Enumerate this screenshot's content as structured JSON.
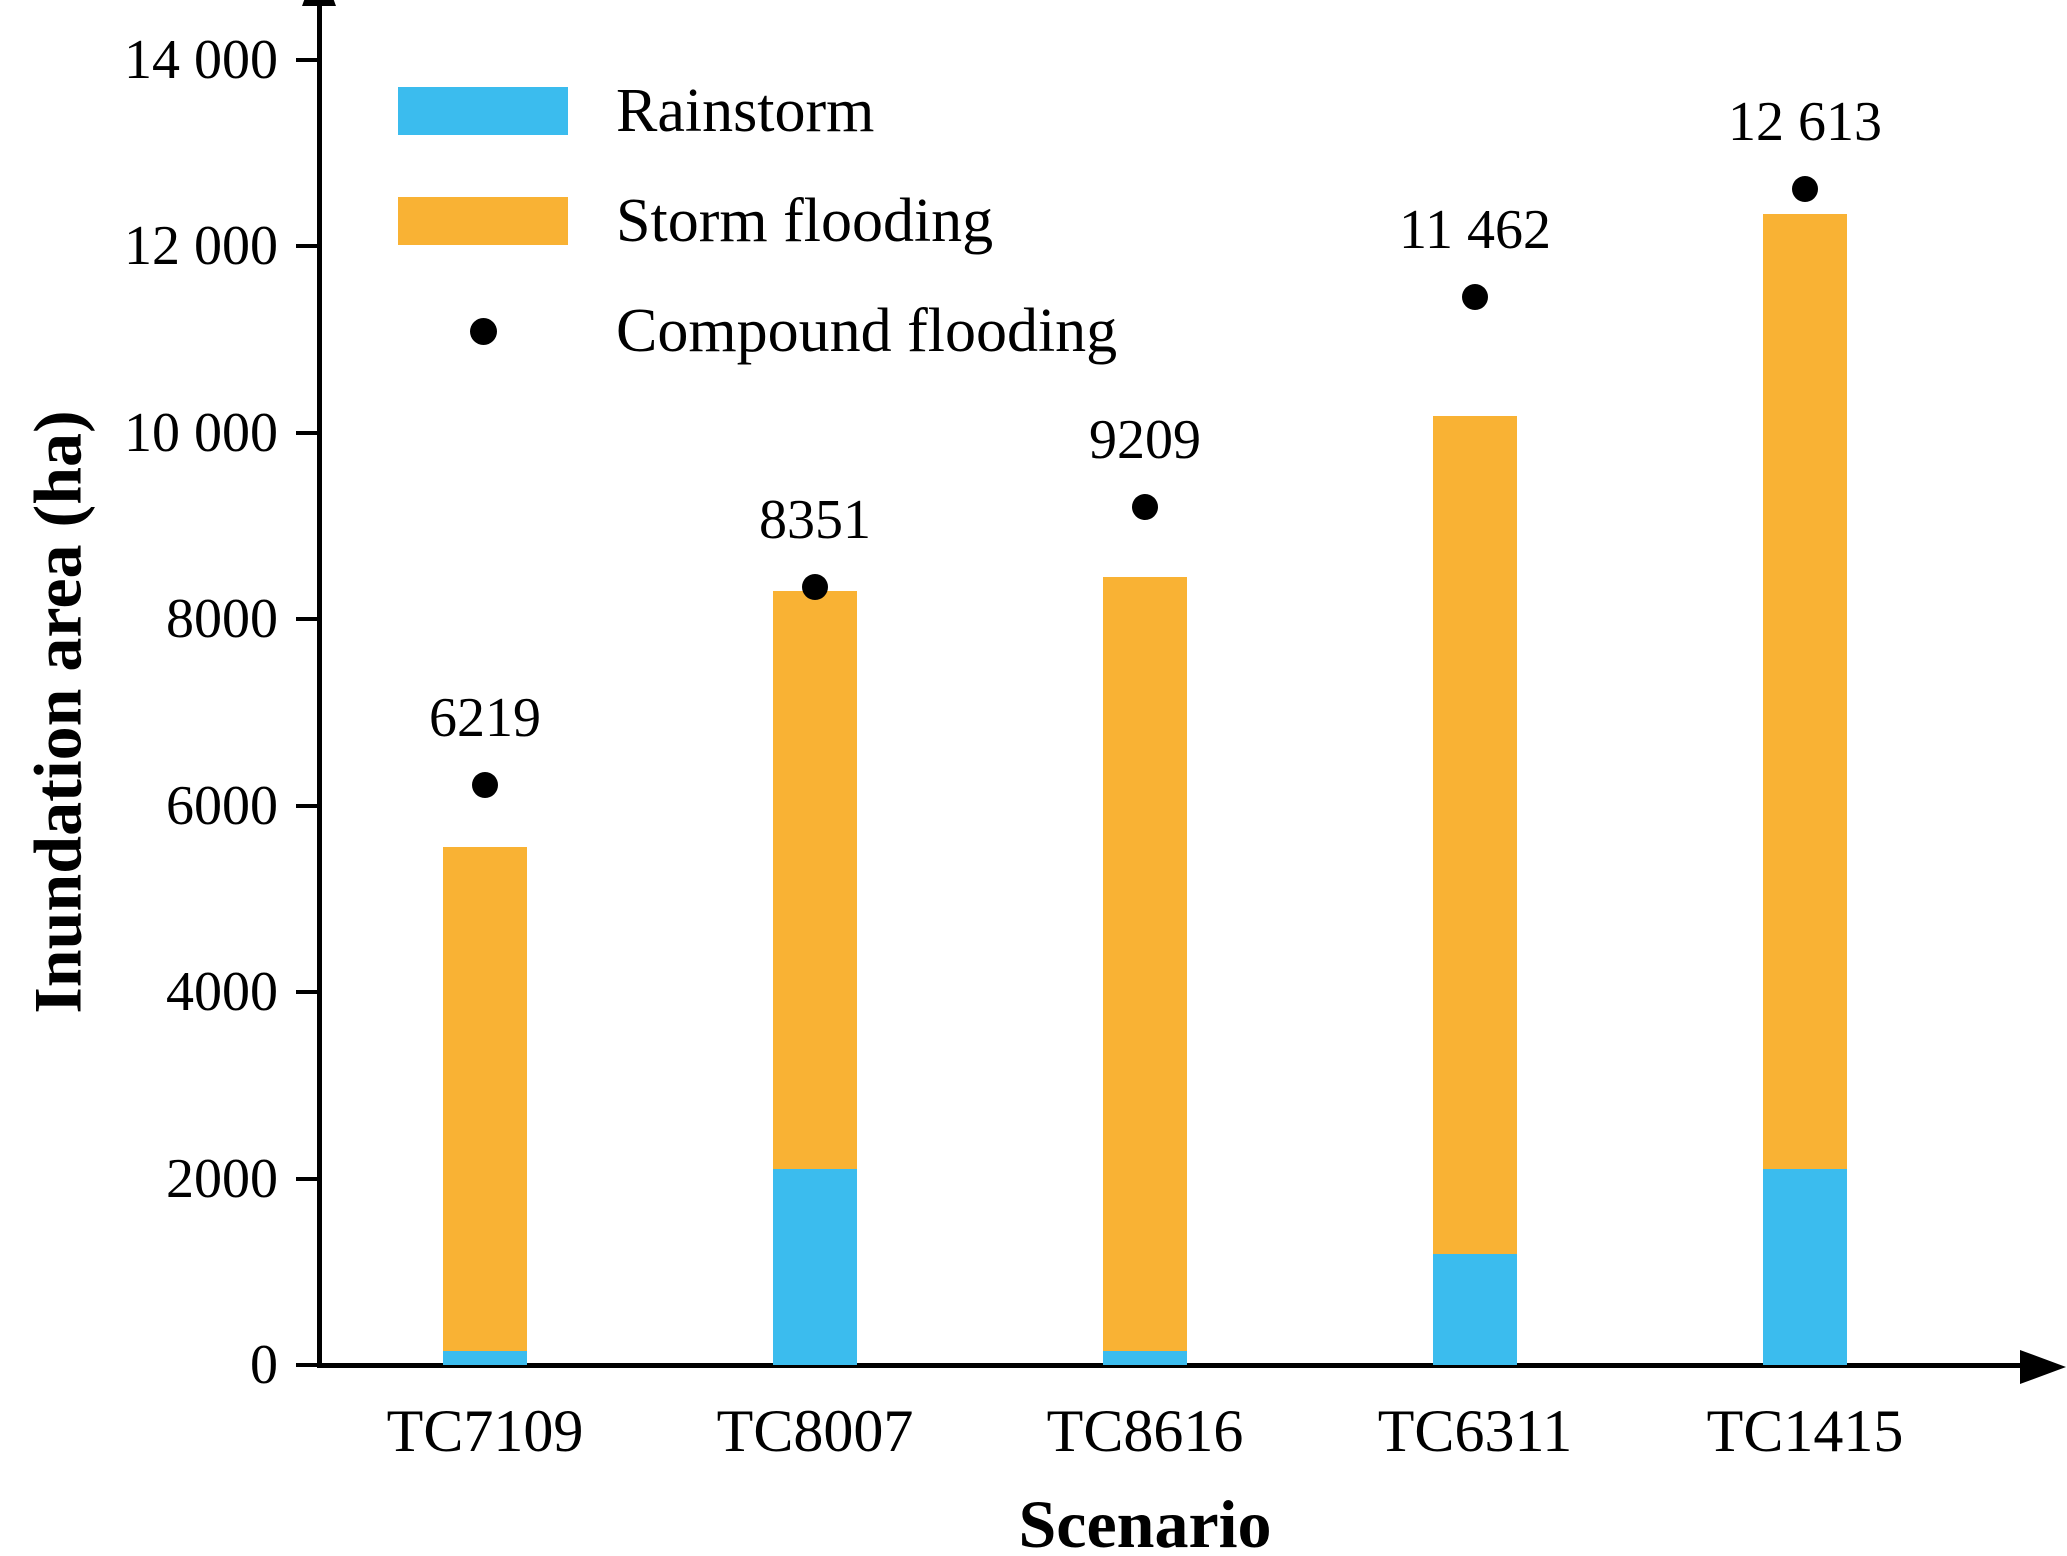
{
  "chart_data": {
    "type": "bar",
    "stacked": true,
    "title": "",
    "xlabel": "Scenario",
    "ylabel": "Inundation area (ha)",
    "ylim": [
      0,
      14000
    ],
    "grid": false,
    "legend_position": "top-left",
    "yticks": {
      "values": [
        0,
        2000,
        4000,
        6000,
        8000,
        10000,
        12000,
        14000
      ],
      "labels": [
        "0",
        "2000",
        "4000",
        "6000",
        "8000",
        "10 000",
        "12 000",
        "14 000"
      ]
    },
    "categories": [
      "TC7109",
      "TC8007",
      "TC8616",
      "TC6311",
      "TC1415"
    ],
    "series": [
      {
        "name": "Rainstorm",
        "color": "#3BBCEE",
        "values": [
          150,
          2100,
          150,
          1190,
          2100
        ]
      },
      {
        "name": "Storm flooding",
        "color": "#F9B234",
        "values": [
          5410,
          6200,
          8300,
          8990,
          10250
        ]
      }
    ],
    "scatter": {
      "name": "Compound flooding",
      "color": "#000000",
      "values": [
        6219,
        8351,
        9209,
        11462,
        12613
      ],
      "labels": [
        "6219",
        "8351",
        "9209",
        "11 462",
        "12 613"
      ]
    }
  }
}
